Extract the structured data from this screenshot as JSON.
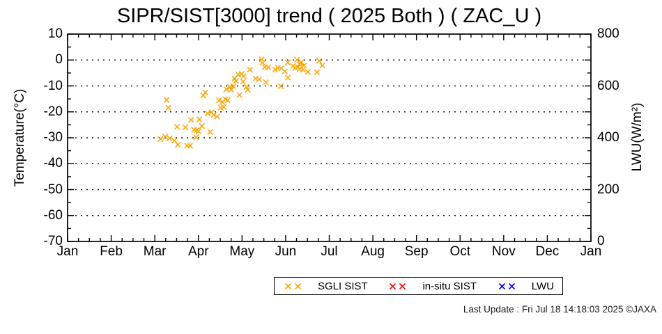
{
  "chart": {
    "title": "SIPR/SIST[3000] trend ( 2025 Both ) ( ZAC_U )",
    "y_left_label": "Temperature(°C)",
    "y_right_label": "LWU(W/m²)"
  },
  "legend": {
    "items": [
      {
        "label": "SGLI SIST",
        "color": "#FFA500"
      },
      {
        "label": "in-situ SIST",
        "color": "#FF0000"
      },
      {
        "label": "LWU",
        "color": "#0000FF"
      }
    ]
  },
  "footer": {
    "last_update": "Last Update : Fri Jul 18 14:18:03 2025  ©JAXA"
  },
  "chart_data": {
    "type": "scatter",
    "title": "SIPR/SIST[3000] trend ( 2025 Both ) ( ZAC_U )",
    "x_axis": {
      "tick_labels": [
        "Jan",
        "Feb",
        "Mar",
        "Apr",
        "May",
        "Jun",
        "Jul",
        "Aug",
        "Sep",
        "Oct",
        "Nov",
        "Dec",
        "Jan"
      ],
      "range_months": [
        0,
        12
      ],
      "minor_ticks_per_interval": 3,
      "x_encoding": "decimal months since Jan 1 of 2025 (0 = Jan 1, 12 = next Jan 1)"
    },
    "y_left": {
      "label": "Temperature(°C)",
      "ticks": [
        10,
        0,
        -10,
        -20,
        -30,
        -40,
        -50,
        -60,
        -70
      ],
      "lim": [
        -70,
        10
      ],
      "minor_step": 5
    },
    "y_right": {
      "label": "LWU(W/m²)",
      "ticks": [
        800,
        600,
        400,
        200,
        0
      ],
      "lim": [
        0,
        800
      ],
      "minor_step": 50
    },
    "grid": {
      "horizontal_dotted_at": [
        0,
        -10,
        -20,
        -30,
        -40,
        -50,
        -60
      ],
      "vertical": false
    },
    "legend_position": "bottom-center",
    "series": [
      {
        "name": "SGLI SIST",
        "marker": "x",
        "color": "#FFA500",
        "axis": "left",
        "points_month_temp": [
          [
            2.13,
            -30.5
          ],
          [
            2.24,
            -29.6
          ],
          [
            2.27,
            -15.4
          ],
          [
            2.31,
            -18.4
          ],
          [
            2.34,
            -30.2
          ],
          [
            2.45,
            -31.1
          ],
          [
            2.51,
            -25.8
          ],
          [
            2.53,
            -32.7
          ],
          [
            2.7,
            -26.0
          ],
          [
            2.74,
            -33.0
          ],
          [
            2.81,
            -33.0
          ],
          [
            2.83,
            -23.1
          ],
          [
            2.9,
            -26.9
          ],
          [
            2.95,
            -29.8
          ],
          [
            2.96,
            -27.1
          ],
          [
            3.0,
            -27.5
          ],
          [
            3.02,
            -22.9
          ],
          [
            3.08,
            -25.5
          ],
          [
            3.11,
            -13.7
          ],
          [
            3.16,
            -12.5
          ],
          [
            3.21,
            -20.6
          ],
          [
            3.27,
            -27.8
          ],
          [
            3.3,
            -20.2
          ],
          [
            3.35,
            -21.2
          ],
          [
            3.43,
            -21.8
          ],
          [
            3.47,
            -15.5
          ],
          [
            3.51,
            -18.4
          ],
          [
            3.55,
            -16.2
          ],
          [
            3.58,
            -18.1
          ],
          [
            3.62,
            -15.1
          ],
          [
            3.64,
            -11.3
          ],
          [
            3.67,
            -15.5
          ],
          [
            3.72,
            -10.4
          ],
          [
            3.75,
            -11.5
          ],
          [
            3.8,
            -10.1
          ],
          [
            3.83,
            -7.1
          ],
          [
            3.86,
            -8.1
          ],
          [
            3.91,
            -5.6
          ],
          [
            3.94,
            -13.5
          ],
          [
            3.99,
            -5.4
          ],
          [
            4.02,
            -8.3
          ],
          [
            4.04,
            -6.2
          ],
          [
            4.1,
            -10.4
          ],
          [
            4.13,
            -11.5
          ],
          [
            4.18,
            -3.7
          ],
          [
            4.31,
            -7.2
          ],
          [
            4.39,
            -7.4
          ],
          [
            4.45,
            0.3
          ],
          [
            4.47,
            -1.1
          ],
          [
            4.52,
            -2.8
          ],
          [
            4.55,
            -8.6
          ],
          [
            4.6,
            -2.8
          ],
          [
            4.76,
            -3.7
          ],
          [
            4.82,
            -3.0
          ],
          [
            4.89,
            -10.1
          ],
          [
            4.9,
            -3.2
          ],
          [
            4.98,
            -4.4
          ],
          [
            5.05,
            -1.0
          ],
          [
            5.05,
            -6.8
          ],
          [
            5.17,
            -2.3
          ],
          [
            5.22,
            -3.0
          ],
          [
            5.26,
            0.1
          ],
          [
            5.28,
            -2.8
          ],
          [
            5.32,
            -1.7
          ],
          [
            5.32,
            -3.5
          ],
          [
            5.34,
            -1.2
          ],
          [
            5.36,
            -0.8
          ],
          [
            5.4,
            -3.7
          ],
          [
            5.42,
            -2.1
          ],
          [
            5.51,
            -4.6
          ],
          [
            5.72,
            -4.7
          ],
          [
            5.77,
            -0.3
          ],
          [
            5.84,
            -2.1
          ]
        ]
      },
      {
        "name": "in-situ SIST",
        "marker": "x",
        "color": "#FF0000",
        "axis": "left",
        "points_month_temp": []
      },
      {
        "name": "LWU",
        "marker": "x",
        "color": "#0000FF",
        "axis": "right",
        "points_month_temp": []
      }
    ]
  }
}
